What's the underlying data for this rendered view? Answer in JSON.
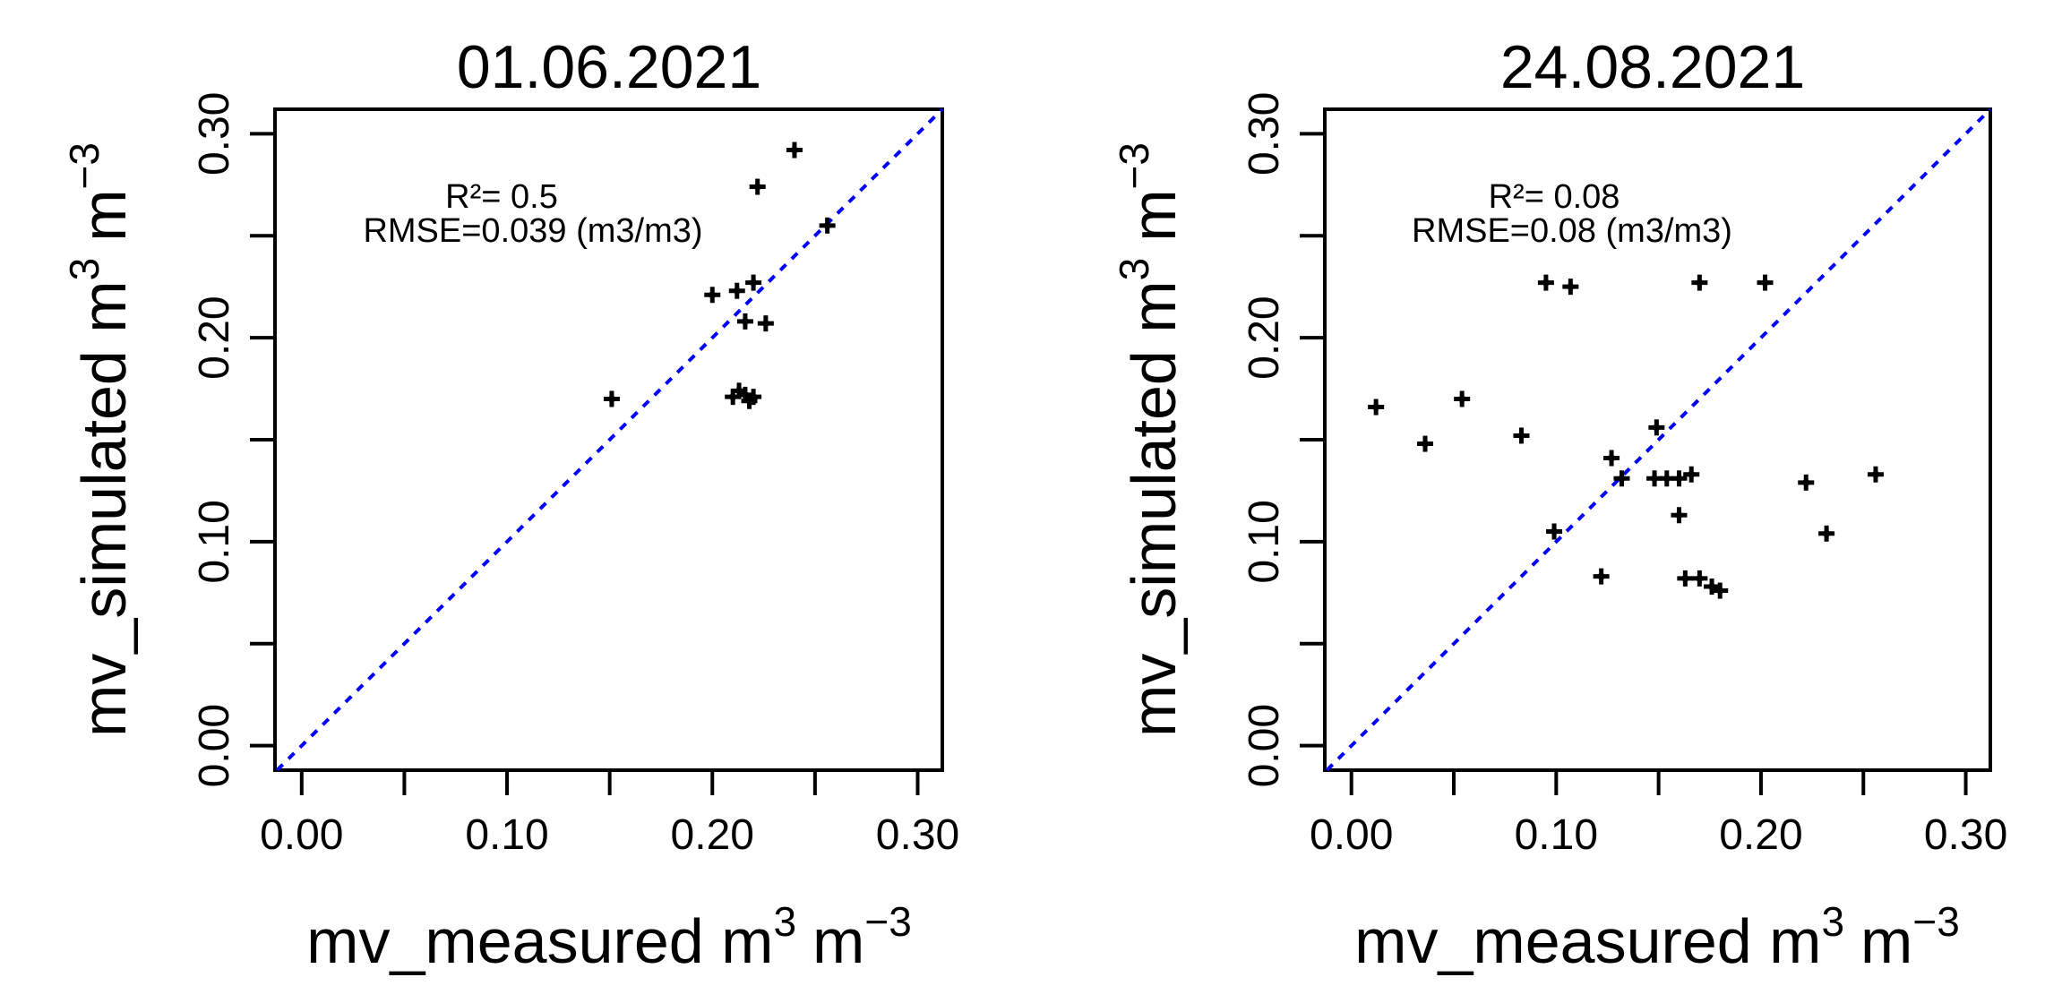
{
  "chart_data": [
    {
      "type": "scatter",
      "title": "01.06.2021",
      "xlabel": "mv_measured m",
      "ylabel": "mv_simulated m",
      "unit_base": "m",
      "unit_exp": "3",
      "unit_neg_exp": "−3",
      "xlim": [
        -0.013,
        0.312
      ],
      "ylim": [
        -0.012,
        0.312
      ],
      "xticks": [
        0.0,
        0.05,
        0.1,
        0.15,
        0.2,
        0.25,
        0.3
      ],
      "xtick_labels": [
        "0.00",
        "",
        "0.10",
        "",
        "0.20",
        "",
        "0.30"
      ],
      "yticks": [
        0.0,
        0.05,
        0.1,
        0.15,
        0.2,
        0.25,
        0.3
      ],
      "ytick_labels": [
        "0.00",
        "",
        "0.10",
        "",
        "0.20",
        "",
        "0.30"
      ],
      "r2_label": "R²= 0.5",
      "rmse_label": "RMSE=0.039 (m3/m3)",
      "reference_line": {
        "type": "1:1",
        "color": "#0000ff"
      },
      "point_color": "#000000",
      "points": [
        {
          "x": 0.151,
          "y": 0.17
        },
        {
          "x": 0.2,
          "y": 0.221
        },
        {
          "x": 0.212,
          "y": 0.223
        },
        {
          "x": 0.22,
          "y": 0.227
        },
        {
          "x": 0.216,
          "y": 0.208
        },
        {
          "x": 0.226,
          "y": 0.207
        },
        {
          "x": 0.222,
          "y": 0.274
        },
        {
          "x": 0.24,
          "y": 0.292
        },
        {
          "x": 0.256,
          "y": 0.255
        },
        {
          "x": 0.21,
          "y": 0.171
        },
        {
          "x": 0.213,
          "y": 0.174
        },
        {
          "x": 0.216,
          "y": 0.172
        },
        {
          "x": 0.218,
          "y": 0.169
        },
        {
          "x": 0.22,
          "y": 0.171
        }
      ]
    },
    {
      "type": "scatter",
      "title": "24.08.2021",
      "xlabel": "mv_measured m",
      "ylabel": "mv_simulated m",
      "unit_base": "m",
      "unit_exp": "3",
      "unit_neg_exp": "−3",
      "xlim": [
        -0.013,
        0.312
      ],
      "ylim": [
        -0.012,
        0.312
      ],
      "xticks": [
        0.0,
        0.05,
        0.1,
        0.15,
        0.2,
        0.25,
        0.3
      ],
      "xtick_labels": [
        "0.00",
        "",
        "0.10",
        "",
        "0.20",
        "",
        "0.30"
      ],
      "yticks": [
        0.0,
        0.05,
        0.1,
        0.15,
        0.2,
        0.25,
        0.3
      ],
      "ytick_labels": [
        "0.00",
        "",
        "0.10",
        "",
        "0.20",
        "",
        "0.30"
      ],
      "r2_label": "R²= 0.08",
      "rmse_label": "RMSE=0.08 (m3/m3)",
      "reference_line": {
        "type": "1:1",
        "color": "#0000ff"
      },
      "point_color": "#000000",
      "points": [
        {
          "x": 0.012,
          "y": 0.166
        },
        {
          "x": 0.036,
          "y": 0.148
        },
        {
          "x": 0.054,
          "y": 0.17
        },
        {
          "x": 0.083,
          "y": 0.152
        },
        {
          "x": 0.095,
          "y": 0.227
        },
        {
          "x": 0.107,
          "y": 0.225
        },
        {
          "x": 0.17,
          "y": 0.227
        },
        {
          "x": 0.202,
          "y": 0.227
        },
        {
          "x": 0.099,
          "y": 0.105
        },
        {
          "x": 0.127,
          "y": 0.141
        },
        {
          "x": 0.132,
          "y": 0.131
        },
        {
          "x": 0.149,
          "y": 0.156
        },
        {
          "x": 0.148,
          "y": 0.131
        },
        {
          "x": 0.154,
          "y": 0.131
        },
        {
          "x": 0.16,
          "y": 0.131
        },
        {
          "x": 0.166,
          "y": 0.133
        },
        {
          "x": 0.16,
          "y": 0.113
        },
        {
          "x": 0.122,
          "y": 0.083
        },
        {
          "x": 0.163,
          "y": 0.082
        },
        {
          "x": 0.17,
          "y": 0.082
        },
        {
          "x": 0.176,
          "y": 0.078
        },
        {
          "x": 0.18,
          "y": 0.076
        },
        {
          "x": 0.222,
          "y": 0.129
        },
        {
          "x": 0.232,
          "y": 0.104
        },
        {
          "x": 0.256,
          "y": 0.133
        }
      ]
    }
  ]
}
